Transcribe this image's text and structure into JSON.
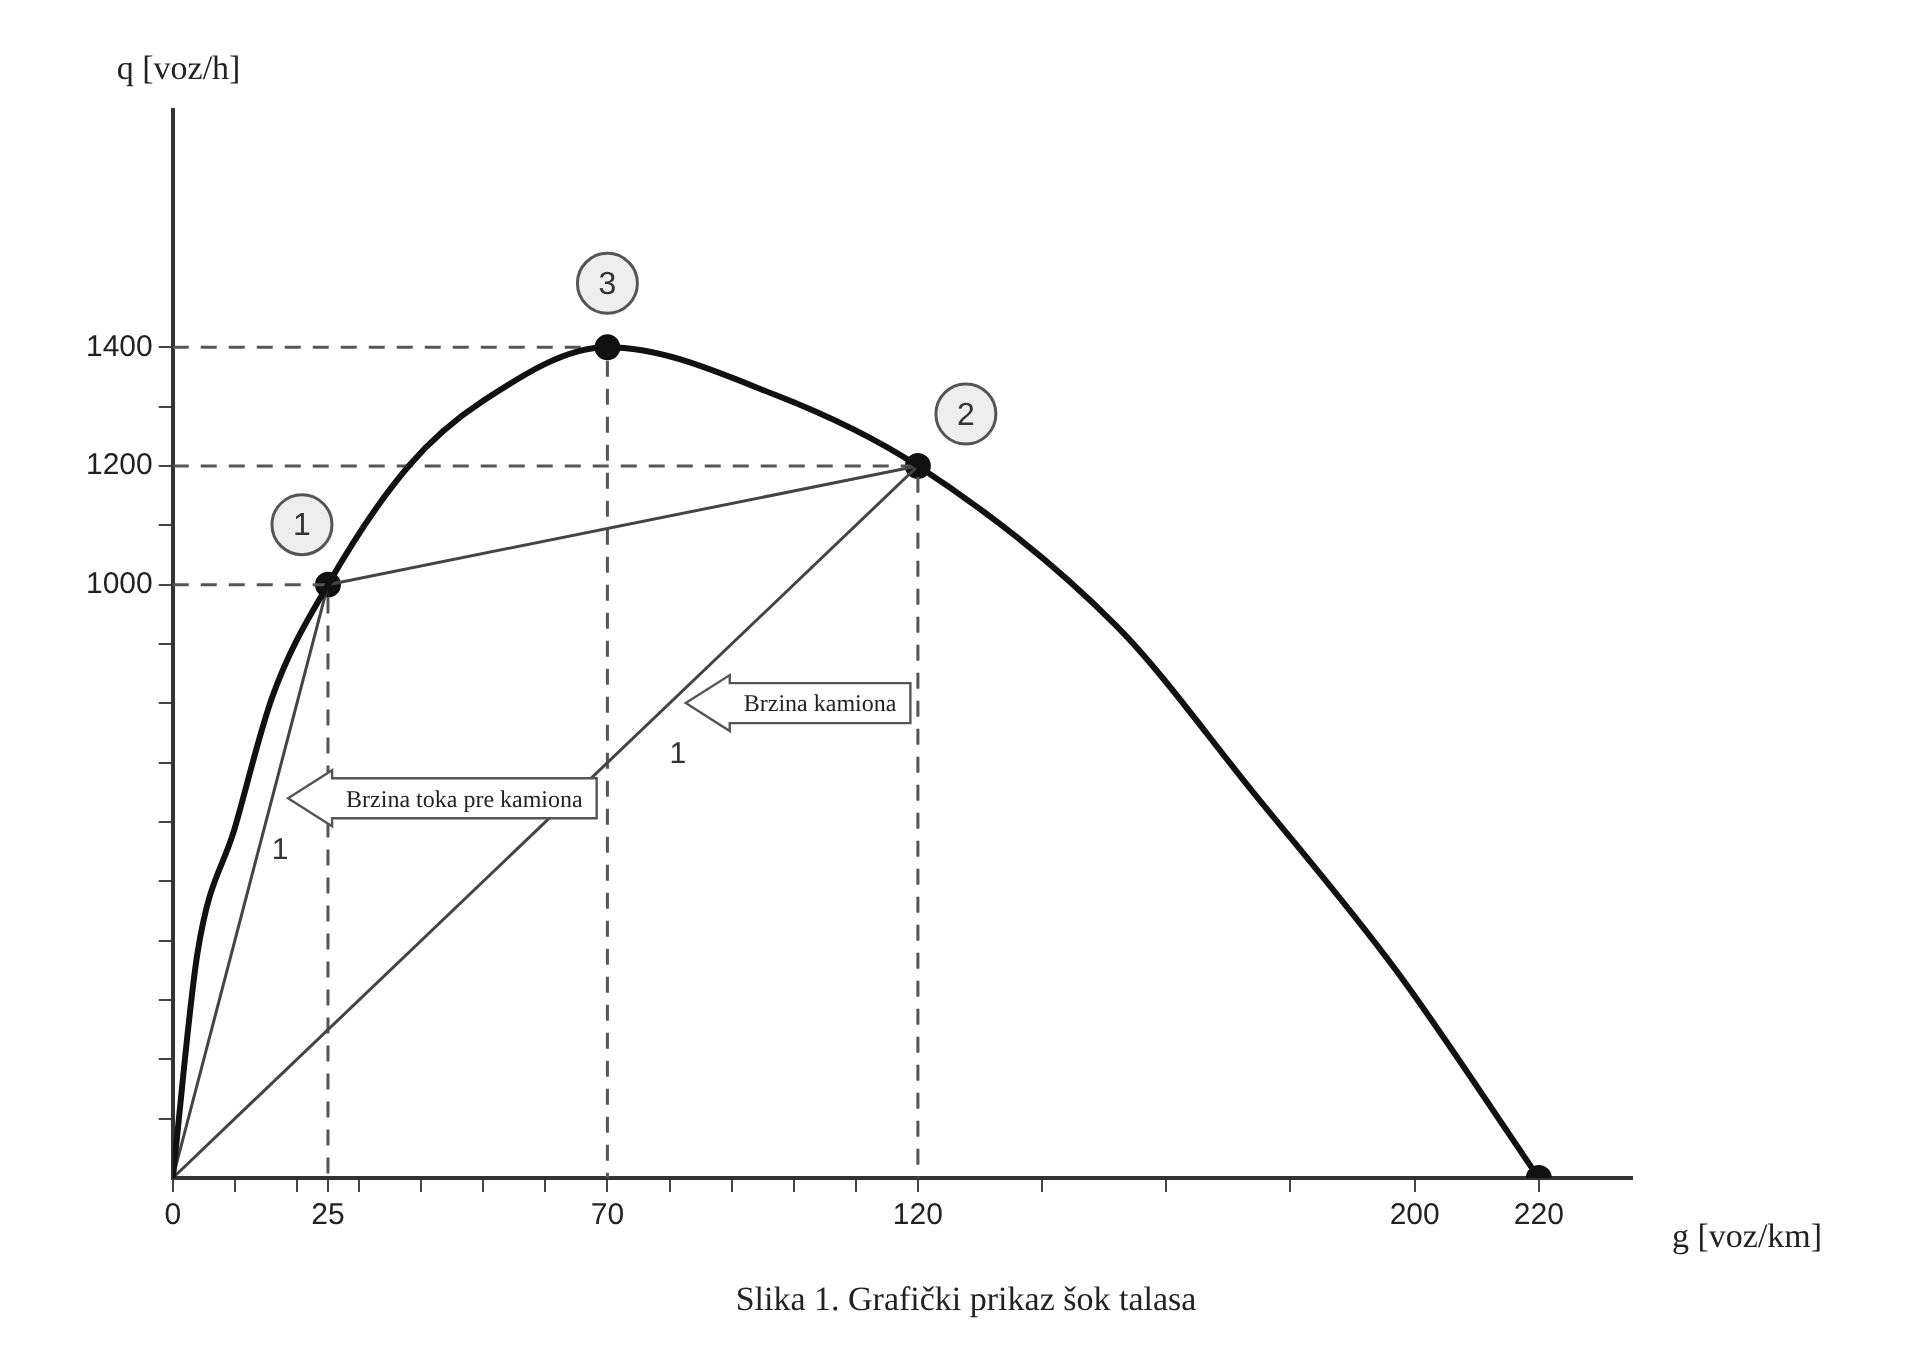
{
  "chart_data": {
    "type": "line",
    "xlabel": "g [voz/km]",
    "ylabel": "q [voz/h]",
    "xlim": [
      0,
      235
    ],
    "ylim": [
      0,
      1800
    ],
    "xticks": [
      0,
      {
        "value": 10,
        "label": null
      },
      {
        "value": 20,
        "label": null
      },
      25,
      {
        "value": 30,
        "label": null
      },
      {
        "value": 40,
        "label": null
      },
      {
        "value": 50,
        "label": null
      },
      {
        "value": 60,
        "label": null
      },
      70,
      {
        "value": 80,
        "label": null
      },
      {
        "value": 90,
        "label": null
      },
      {
        "value": 100,
        "label": null
      },
      {
        "value": 110,
        "label": null
      },
      120,
      {
        "value": 140,
        "label": null
      },
      {
        "value": 160,
        "label": null
      },
      {
        "value": 180,
        "label": null
      },
      200,
      220
    ],
    "yticks": [
      {
        "value": 100,
        "label": null
      },
      {
        "value": 200,
        "label": null
      },
      {
        "value": 300,
        "label": null
      },
      {
        "value": 400,
        "label": null
      },
      {
        "value": 500,
        "label": null
      },
      {
        "value": 600,
        "label": null
      },
      {
        "value": 700,
        "label": null
      },
      {
        "value": 800,
        "label": null
      },
      {
        "value": 900,
        "label": null
      },
      1000,
      {
        "value": 1100,
        "label": null
      },
      1200,
      {
        "value": 1300,
        "label": null
      },
      1400
    ],
    "grid": false,
    "legend": false,
    "series": [
      {
        "type": "line",
        "color": "#111111",
        "marker": "none",
        "line_style": "solid",
        "x": [
          0,
          4,
          10,
          16,
          25,
          38,
          50,
          70,
          97,
          120,
          152,
          174,
          197,
          220
        ],
        "values": [
          0,
          380,
          590,
          810,
          1000,
          1200,
          1310,
          1400,
          1320,
          1200,
          930,
          650,
          350,
          0
        ]
      },
      {
        "type": "line",
        "color": "#444444",
        "marker": "none",
        "line_style": "solid",
        "x": [
          0,
          25
        ],
        "values": [
          0,
          1000
        ]
      },
      {
        "type": "line",
        "color": "#444444",
        "marker": "none",
        "line_style": "solid",
        "x": [
          25,
          120
        ],
        "values": [
          1000,
          1200
        ]
      },
      {
        "type": "line",
        "color": "#444444",
        "marker": "none",
        "line_style": "solid",
        "x": [
          0,
          120
        ],
        "values": [
          0,
          1200
        ]
      },
      {
        "type": "line",
        "color": "#555555",
        "marker": "none",
        "line_style": "dashed",
        "x": [
          0,
          25,
          25
        ],
        "values": [
          1000,
          1000,
          0
        ]
      },
      {
        "type": "line",
        "color": "#555555",
        "marker": "none",
        "line_style": "dashed",
        "x": [
          0,
          70,
          70
        ],
        "values": [
          1400,
          1400,
          0
        ]
      },
      {
        "type": "line",
        "color": "#555555",
        "marker": "none",
        "line_style": "dashed",
        "x": [
          0,
          120,
          120
        ],
        "values": [
          1200,
          1200,
          0
        ]
      },
      {
        "type": "scatter",
        "color": "#111111",
        "marker": "circle",
        "x": [
          25,
          70,
          120,
          220
        ],
        "values": [
          1000,
          1400,
          1200,
          0
        ]
      }
    ],
    "annotations": [
      {
        "text": "1",
        "x": 25,
        "y": 1000
      },
      {
        "text": "2",
        "x": 120,
        "y": 1200
      },
      {
        "text": "3",
        "x": 70,
        "y": 1400
      },
      "Brzina toka pre kamiona",
      "Brzina kamiona",
      "1",
      "1",
      "Slika 1. Grafički prikaz šok talasa"
    ]
  }
}
